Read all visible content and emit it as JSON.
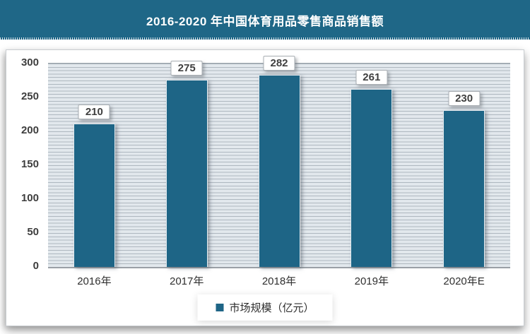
{
  "header": {
    "title": "2016-2020 年中国体育用品零售商品销售额",
    "bg_color": "#1f6787",
    "text_color": "#ffffff"
  },
  "chart_data": {
    "type": "bar",
    "title": "2016-2020 年中国体育用品零售商品销售额",
    "categories": [
      "2016年",
      "2017年",
      "2018年",
      "2019年",
      "2020年E"
    ],
    "series": [
      {
        "name": "市场规模（亿元）",
        "values": [
          210,
          275,
          282,
          261,
          230
        ]
      }
    ],
    "data_labels": [
      "210",
      "275",
      "282",
      "261",
      "230"
    ],
    "xlabel": "",
    "ylabel": "",
    "ylim": [
      0,
      300
    ],
    "yticks": [
      0,
      50,
      100,
      150,
      200,
      250,
      300
    ],
    "grid": "horizontal minor lines every 5 units on pale blue-gray background",
    "legend_position": "bottom-center",
    "bar_color": "#1e6586",
    "plot_bg_color": "#e2e8ed",
    "gridline_color": "#aeb7bf"
  },
  "legend": {
    "marker": "square",
    "marker_color": "#1e6586",
    "label": "市场规模（亿元）"
  }
}
